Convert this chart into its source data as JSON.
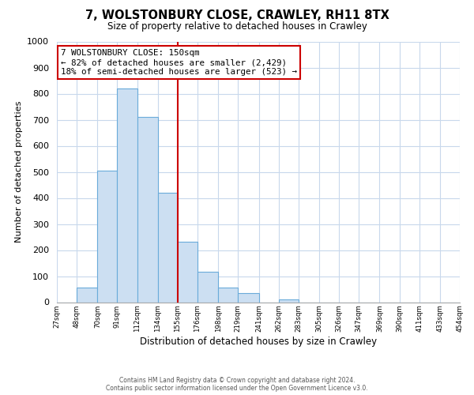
{
  "title": "7, WOLSTONBURY CLOSE, CRAWLEY, RH11 8TX",
  "subtitle": "Size of property relative to detached houses in Crawley",
  "xlabel": "Distribution of detached houses by size in Crawley",
  "ylabel": "Number of detached properties",
  "bar_edges": [
    27,
    48,
    70,
    91,
    112,
    134,
    155,
    176,
    198,
    219,
    241,
    262,
    283,
    305,
    326,
    347,
    369,
    390,
    411,
    433,
    454
  ],
  "bar_heights": [
    0,
    57,
    505,
    820,
    710,
    420,
    233,
    118,
    57,
    35,
    0,
    12,
    0,
    0,
    0,
    0,
    0,
    0,
    0,
    0
  ],
  "bar_color": "#ccdff2",
  "bar_edge_color": "#6aabda",
  "property_line_x": 155,
  "property_line_color": "#cc0000",
  "ylim": [
    0,
    1000
  ],
  "annotation_line1": "7 WOLSTONBURY CLOSE: 150sqm",
  "annotation_line2": "← 82% of detached houses are smaller (2,429)",
  "annotation_line3": "18% of semi-detached houses are larger (523) →",
  "footer1": "Contains HM Land Registry data © Crown copyright and database right 2024.",
  "footer2": "Contains public sector information licensed under the Open Government Licence v3.0.",
  "tick_labels": [
    "27sqm",
    "48sqm",
    "70sqm",
    "91sqm",
    "112sqm",
    "134sqm",
    "155sqm",
    "176sqm",
    "198sqm",
    "219sqm",
    "241sqm",
    "262sqm",
    "283sqm",
    "305sqm",
    "326sqm",
    "347sqm",
    "369sqm",
    "390sqm",
    "411sqm",
    "433sqm",
    "454sqm"
  ],
  "background_color": "#ffffff",
  "grid_color": "#c8d8ec"
}
